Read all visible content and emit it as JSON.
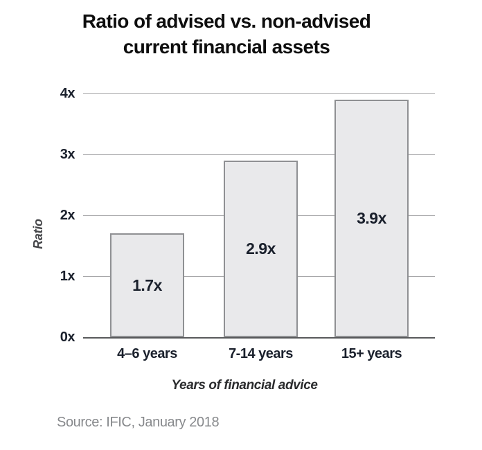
{
  "title": {
    "line1": "Ratio of advised vs. non-advised",
    "line2": "current financial assets"
  },
  "chart_data": {
    "type": "bar",
    "title": "Ratio of advised vs. non-advised current financial assets",
    "categories": [
      "4–6 years",
      "7-14 years",
      "15+ years"
    ],
    "values": [
      1.7,
      2.9,
      3.9
    ],
    "bar_labels": [
      "1.7x",
      "2.9x",
      "3.9x"
    ],
    "xlabel": "Years of financial advice",
    "ylabel": "Ratio",
    "y_ticks": [
      "0x",
      "1x",
      "2x",
      "3x",
      "4x"
    ],
    "ylim": [
      0,
      4
    ],
    "grid": true,
    "legend": "none",
    "bar_fill": "#e9e9eb",
    "bar_border": "#8f9093",
    "gridline_color": "#a4a4a6",
    "axis_color": "#58595b",
    "label_color": "#1a202c"
  },
  "source": "Source: IFIC, January 2018"
}
